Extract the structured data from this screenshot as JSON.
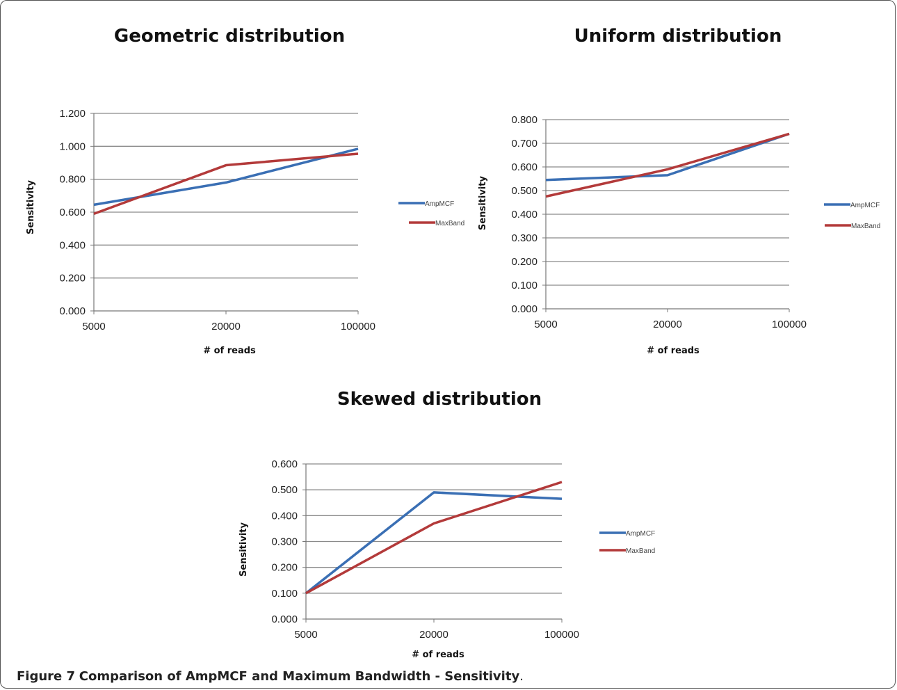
{
  "caption": {
    "label": "Figure 7",
    "text": "Comparison of AmpMCF and Maximum Bandwidth - Sensitivity",
    "end": "."
  },
  "chart_data": [
    {
      "type": "line",
      "title": "Geometric distribution",
      "xlabel": "# of reads",
      "ylabel": "Sensitivity",
      "categories": [
        "5000",
        "20000",
        "100000"
      ],
      "ylim": [
        0,
        1.2
      ],
      "yticks": [
        "0.000",
        "0.200",
        "0.400",
        "0.600",
        "0.800",
        "1.000",
        "1.200"
      ],
      "grid": true,
      "legend": "right",
      "series": [
        {
          "name": "AmpMCF",
          "color": "#3a6fb4",
          "values": [
            0.645,
            0.78,
            0.985
          ]
        },
        {
          "name": "MaxBand",
          "color": "#b33a3a",
          "values": [
            0.59,
            0.885,
            0.955
          ]
        }
      ]
    },
    {
      "type": "line",
      "title": "Uniform distribution",
      "xlabel": "# of reads",
      "ylabel": "Sensitivity",
      "categories": [
        "5000",
        "20000",
        "100000"
      ],
      "ylim": [
        0,
        0.8
      ],
      "yticks": [
        "0.000",
        "0.100",
        "0.200",
        "0.300",
        "0.400",
        "0.500",
        "0.600",
        "0.700",
        "0.800"
      ],
      "grid": true,
      "legend": "right",
      "series": [
        {
          "name": "AmpMCF",
          "color": "#3a6fb4",
          "values": [
            0.545,
            0.565,
            0.74
          ]
        },
        {
          "name": "MaxBand",
          "color": "#b33a3a",
          "values": [
            0.475,
            0.59,
            0.74
          ]
        }
      ]
    },
    {
      "type": "line",
      "title": "Skewed distribution",
      "xlabel": "# of reads",
      "ylabel": "Sensitivity",
      "categories": [
        "5000",
        "20000",
        "100000"
      ],
      "ylim": [
        0,
        0.6
      ],
      "yticks": [
        "0.000",
        "0.100",
        "0.200",
        "0.300",
        "0.400",
        "0.500",
        "0.600"
      ],
      "grid": true,
      "legend": "right",
      "series": [
        {
          "name": "AmpMCF",
          "color": "#3a6fb4",
          "values": [
            0.1,
            0.49,
            0.465
          ]
        },
        {
          "name": "MaxBand",
          "color": "#b33a3a",
          "values": [
            0.1,
            0.37,
            0.53
          ]
        }
      ]
    }
  ]
}
